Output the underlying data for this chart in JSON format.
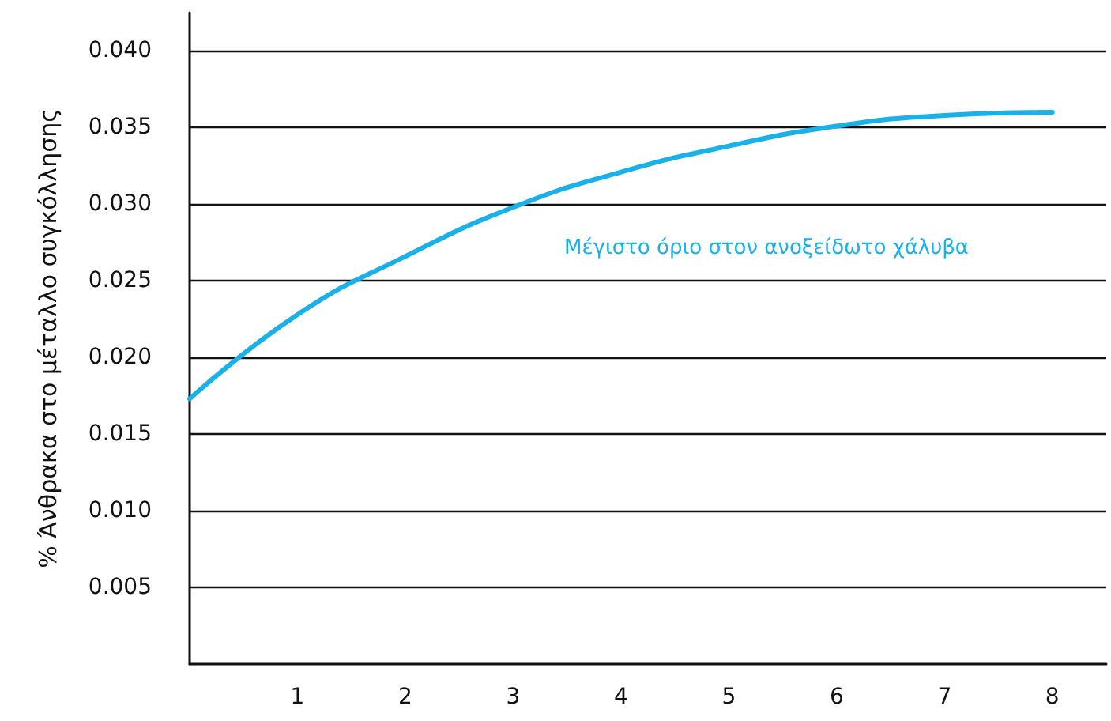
{
  "chart_data": {
    "type": "line",
    "ylabel": "% Άνθρακα στο μέταλλο συγκόλλησης",
    "x": [
      0,
      1,
      2,
      3,
      4,
      5,
      6,
      7,
      8
    ],
    "series": [
      {
        "color": "#1ab0e8",
        "values": [
          0.0173,
          0.0228,
          0.0266,
          0.0298,
          0.0321,
          0.0338,
          0.0351,
          0.0358,
          0.036
        ]
      }
    ],
    "annotations": [
      "Μέγιστο όριο στον ανοξείδωτο χάλυβα"
    ],
    "xlim": [
      0,
      8.5
    ],
    "xticks": [
      1,
      2,
      3,
      4,
      5,
      6,
      7,
      8
    ],
    "ylim": [
      0,
      0.0425
    ],
    "yticks": [
      0.005,
      {
        "value": 0.01,
        "label": "0.010"
      },
      0.015,
      {
        "value": 0.02,
        "label": "0.020"
      },
      0.025,
      {
        "value": 0.03,
        "label": "0.030"
      },
      0.035,
      {
        "value": 0.04,
        "label": "0.040"
      }
    ],
    "grid": "y",
    "marker": "none",
    "line_style": "solid"
  }
}
